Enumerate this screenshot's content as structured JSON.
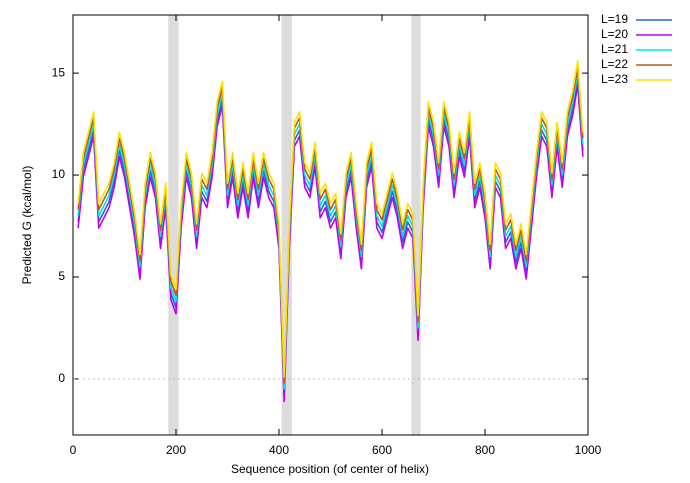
{
  "chart_data": {
    "type": "line",
    "xlabel": "Sequence position (of center of helix)",
    "ylabel": "Predicted  G (kcal/mol)",
    "xlim": [
      0,
      1000
    ],
    "ylim": [
      -2.75,
      17.85
    ],
    "xticks": [
      0,
      200,
      400,
      600,
      800,
      1000
    ],
    "yticks": [
      0,
      5,
      10,
      15
    ],
    "zero_line": true,
    "legend": "outside-right",
    "shaded_regions": [
      [
        185,
        205
      ],
      [
        405,
        425
      ],
      [
        657,
        675
      ]
    ],
    "shade_color": "#dcdcdc",
    "x": [
      10,
      20,
      30,
      40,
      50,
      60,
      70,
      80,
      90,
      100,
      110,
      120,
      130,
      140,
      150,
      160,
      170,
      180,
      190,
      200,
      210,
      220,
      230,
      240,
      250,
      260,
      270,
      280,
      290,
      300,
      310,
      320,
      330,
      340,
      350,
      360,
      370,
      380,
      390,
      400,
      410,
      420,
      430,
      440,
      450,
      460,
      470,
      480,
      490,
      500,
      510,
      520,
      530,
      540,
      550,
      560,
      570,
      580,
      590,
      600,
      610,
      620,
      630,
      640,
      650,
      660,
      670,
      680,
      690,
      700,
      710,
      720,
      730,
      740,
      750,
      760,
      770,
      780,
      790,
      800,
      810,
      820,
      830,
      840,
      850,
      860,
      870,
      880,
      890,
      900,
      910,
      920,
      930,
      940,
      950,
      960,
      970,
      980,
      990
    ],
    "series": [
      {
        "name": "L=19",
        "color": "#1a6fd0",
        "values": [
          7.7,
          10.2,
          11.2,
          12.2,
          7.7,
          8.2,
          8.7,
          9.7,
          11.2,
          10.2,
          8.7,
          7.2,
          5.2,
          8.7,
          10.2,
          9.2,
          6.7,
          8.7,
          4.2,
          3.5,
          7.7,
          10.2,
          9.2,
          6.7,
          9.2,
          8.7,
          10.2,
          12.7,
          13.7,
          8.7,
          10.2,
          8.2,
          9.7,
          8.2,
          10.2,
          8.7,
          10.2,
          9.2,
          8.7,
          6.7,
          -0.8,
          6.7,
          11.7,
          12.2,
          9.7,
          9.2,
          10.7,
          8.2,
          8.7,
          7.7,
          8.2,
          6.2,
          9.2,
          10.2,
          7.7,
          5.7,
          9.7,
          10.7,
          7.7,
          7.2,
          8.2,
          9.2,
          8.2,
          6.7,
          7.7,
          7.2,
          2.2,
          8.7,
          12.7,
          11.7,
          9.7,
          12.7,
          11.7,
          9.2,
          11.2,
          10.2,
          12.2,
          8.7,
          9.7,
          8.2,
          5.7,
          9.7,
          9.2,
          6.7,
          7.2,
          5.7,
          6.7,
          5.2,
          7.7,
          10.2,
          12.2,
          11.7,
          9.2,
          11.7,
          9.7,
          12.2,
          13.2,
          14.7,
          11.2
        ]
      },
      {
        "name": "L=20",
        "color": "#c000f0",
        "values": [
          7.4,
          9.9,
          10.9,
          11.9,
          7.4,
          7.9,
          8.4,
          9.4,
          10.9,
          9.9,
          8.4,
          6.9,
          4.9,
          8.4,
          9.9,
          8.9,
          6.4,
          8.4,
          3.9,
          3.2,
          7.4,
          9.9,
          8.9,
          6.4,
          8.9,
          8.4,
          9.9,
          12.4,
          13.4,
          8.4,
          9.9,
          7.9,
          9.4,
          7.9,
          9.9,
          8.4,
          9.9,
          8.9,
          8.4,
          6.4,
          -1.1,
          6.4,
          11.4,
          11.9,
          9.4,
          8.9,
          10.4,
          7.9,
          8.4,
          7.4,
          7.9,
          5.9,
          8.9,
          9.9,
          7.4,
          5.4,
          9.4,
          10.4,
          7.4,
          6.9,
          7.9,
          8.9,
          7.9,
          6.4,
          7.4,
          6.9,
          1.9,
          8.4,
          12.4,
          11.4,
          9.4,
          12.4,
          11.4,
          8.9,
          10.9,
          9.9,
          11.9,
          8.4,
          9.4,
          7.9,
          5.4,
          9.4,
          8.9,
          6.4,
          6.9,
          5.4,
          6.4,
          4.9,
          7.4,
          9.9,
          11.9,
          11.4,
          8.9,
          11.4,
          9.4,
          11.9,
          12.9,
          14.4,
          10.9
        ]
      },
      {
        "name": "L=21",
        "color": "#00e0ee",
        "values": [
          8.0,
          10.5,
          11.5,
          12.5,
          8.0,
          8.5,
          9.0,
          10.0,
          11.5,
          10.5,
          9.0,
          7.5,
          5.5,
          9.0,
          10.5,
          9.5,
          7.0,
          9.0,
          4.5,
          3.8,
          8.0,
          10.5,
          9.5,
          7.0,
          9.5,
          9.0,
          10.5,
          13.0,
          14.0,
          9.0,
          10.5,
          8.5,
          10.0,
          8.5,
          10.5,
          9.0,
          10.5,
          9.5,
          9.0,
          7.0,
          -0.5,
          7.0,
          12.0,
          12.5,
          10.0,
          9.5,
          11.0,
          8.5,
          9.0,
          8.0,
          8.5,
          6.5,
          9.5,
          10.5,
          8.0,
          6.0,
          10.0,
          11.0,
          8.0,
          7.5,
          8.5,
          9.5,
          8.5,
          7.0,
          8.0,
          7.5,
          2.5,
          9.0,
          13.0,
          12.0,
          10.0,
          13.0,
          12.0,
          9.5,
          11.5,
          10.5,
          12.5,
          9.0,
          10.0,
          8.5,
          6.0,
          10.0,
          9.5,
          7.0,
          7.5,
          6.0,
          7.0,
          5.5,
          8.0,
          10.5,
          12.5,
          12.0,
          9.5,
          12.0,
          10.0,
          12.5,
          13.5,
          15.0,
          11.5
        ]
      },
      {
        "name": "L=22",
        "color": "#b85c1c",
        "values": [
          8.3,
          10.8,
          11.8,
          12.8,
          8.3,
          8.8,
          9.3,
          10.3,
          11.8,
          10.8,
          9.3,
          7.8,
          5.8,
          9.3,
          10.8,
          9.8,
          7.3,
          9.3,
          4.8,
          4.1,
          8.3,
          10.8,
          9.8,
          7.3,
          9.8,
          9.3,
          10.8,
          13.3,
          14.3,
          9.3,
          10.8,
          8.8,
          10.3,
          8.8,
          10.8,
          9.3,
          10.8,
          9.8,
          9.3,
          7.3,
          -0.2,
          7.3,
          12.3,
          12.8,
          10.3,
          9.8,
          11.3,
          8.8,
          9.3,
          8.3,
          8.8,
          6.8,
          9.8,
          10.8,
          8.3,
          6.3,
          10.3,
          11.3,
          8.3,
          7.8,
          8.8,
          9.8,
          8.8,
          7.3,
          8.3,
          7.8,
          2.8,
          9.3,
          13.3,
          12.3,
          10.3,
          13.3,
          12.3,
          9.8,
          11.8,
          10.8,
          12.8,
          9.3,
          10.3,
          8.8,
          6.3,
          10.3,
          9.8,
          7.3,
          7.8,
          6.3,
          7.3,
          5.8,
          8.3,
          10.8,
          12.8,
          12.3,
          9.8,
          12.3,
          10.3,
          12.8,
          13.8,
          15.3,
          11.8
        ]
      },
      {
        "name": "L=23",
        "color": "#ffe000",
        "values": [
          8.6,
          11.1,
          12.1,
          13.1,
          8.6,
          9.1,
          9.6,
          10.6,
          12.1,
          11.1,
          9.6,
          8.1,
          6.1,
          9.6,
          11.1,
          10.1,
          7.6,
          9.6,
          5.1,
          4.4,
          8.6,
          11.1,
          10.1,
          7.6,
          10.1,
          9.6,
          11.1,
          13.6,
          14.6,
          9.6,
          11.1,
          9.1,
          10.6,
          9.1,
          11.1,
          9.6,
          11.1,
          10.1,
          9.6,
          7.6,
          0.1,
          7.6,
          12.6,
          13.1,
          10.6,
          10.1,
          11.6,
          9.1,
          9.6,
          8.6,
          9.1,
          7.1,
          10.1,
          11.1,
          8.6,
          6.6,
          10.6,
          11.6,
          8.6,
          8.1,
          9.1,
          10.1,
          9.1,
          7.6,
          8.6,
          8.1,
          3.1,
          9.6,
          13.6,
          12.6,
          10.6,
          13.6,
          12.6,
          10.1,
          12.1,
          11.1,
          13.1,
          9.6,
          10.6,
          9.1,
          6.6,
          10.6,
          10.1,
          7.6,
          8.1,
          6.6,
          7.6,
          6.1,
          8.6,
          11.1,
          13.1,
          12.6,
          10.1,
          12.6,
          10.6,
          13.1,
          14.1,
          15.6,
          12.1
        ]
      }
    ]
  }
}
